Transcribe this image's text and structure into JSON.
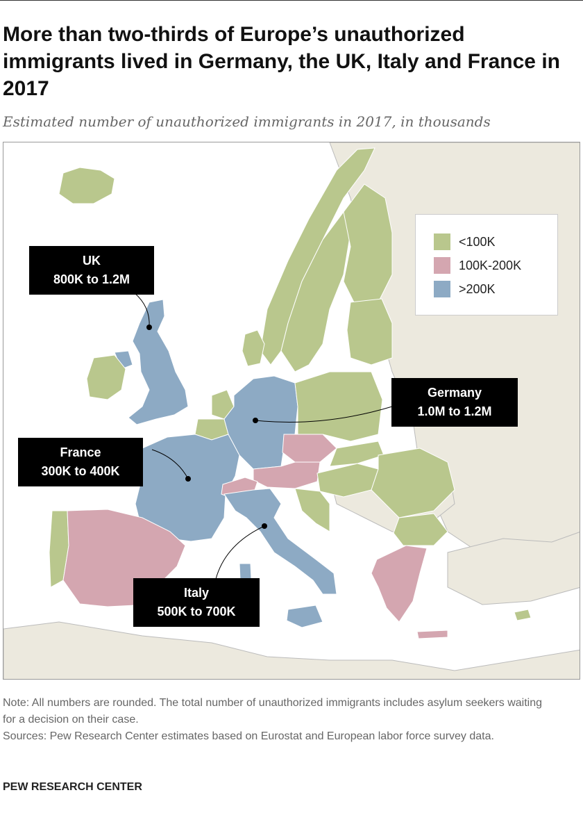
{
  "title": "More than two-thirds of Europe’s unauthorized immigrants lived in Germany, the UK, Italy and France in 2017",
  "subtitle": "Estimated number of unauthorized immigrants in 2017, in thousands",
  "colors": {
    "low": "#b9c78d",
    "mid": "#d4a6b0",
    "high": "#8daac4",
    "other_land": "#ece9de",
    "water": "#ffffff",
    "callout_bg": "#000000"
  },
  "legend": {
    "items": [
      {
        "label": "<100K",
        "category": "low"
      },
      {
        "label": "100K-200K",
        "category": "mid"
      },
      {
        "label": ">200K",
        "category": "high"
      }
    ]
  },
  "callouts": {
    "uk": {
      "name": "UK",
      "range": "800K to 1.2M"
    },
    "germany": {
      "name": "Germany",
      "range": "1.0M to 1.2M"
    },
    "france": {
      "name": "France",
      "range": "300K to 400K"
    },
    "italy": {
      "name": "Italy",
      "range": "500K to 700K"
    }
  },
  "notes": {
    "note": "Note: All numbers are rounded. The total number of unauthorized immigrants includes asylum seekers waiting for a decision on their case.",
    "sources": "Sources: Pew Research Center estimates based on Eurostat and European labor force survey data."
  },
  "brand": "PEW RESEARCH CENTER"
}
